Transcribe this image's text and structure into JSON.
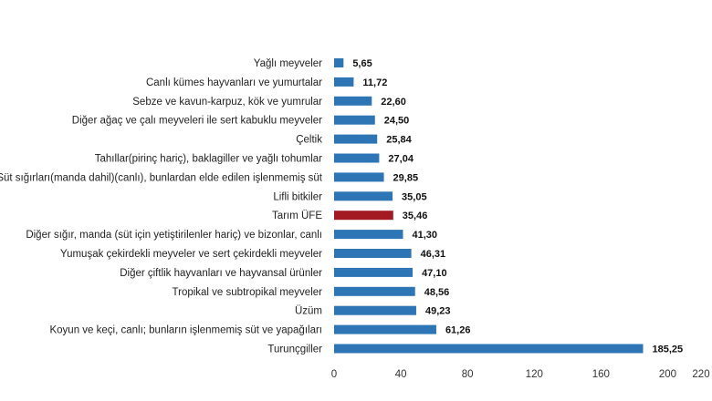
{
  "chart_data": {
    "type": "bar",
    "orientation": "horizontal",
    "title": "",
    "xlabel": "",
    "ylabel": "",
    "categories": [
      "Yağlı meyveler",
      "Canlı kümes hayvanları ve yumurtalar",
      "Sebze ve kavun-karpuz, kök ve yumrular",
      "Diğer ağaç ve çalı meyveleri ile sert kabuklu meyveler",
      "Çeltik",
      "Tahıllar(pirinç hariç), baklagiller ve yağlı tohumlar",
      "Süt sığırları(manda dahil)(canlı), bunlardan elde edilen işlenmemiş süt",
      "Lifli bitkiler",
      "Tarım ÜFE",
      "Diğer sığır, manda (süt için yetiştirilenler hariç) ve bizonlar, canlı",
      "Yumuşak çekirdekli meyveler ve sert çekirdekli meyveler",
      "Diğer çiftlik hayvanları ve hayvansal ürünler",
      "Tropikal ve subtropikal meyveler",
      "Üzüm",
      "Koyun ve keçi, canlı; bunların işlenmemiş süt ve yapağıları",
      "Turunçgiller"
    ],
    "values": [
      5.65,
      11.72,
      22.6,
      24.5,
      25.84,
      27.04,
      29.85,
      35.05,
      35.46,
      41.3,
      46.31,
      47.1,
      48.56,
      49.23,
      61.26,
      185.25
    ],
    "value_labels": [
      "5,65",
      "11,72",
      "22,60",
      "24,50",
      "25,84",
      "27,04",
      "29,85",
      "35,05",
      "35,46",
      "41,30",
      "46,31",
      "47,10",
      "48,56",
      "49,23",
      "61,26",
      "185,25"
    ],
    "highlight_category": "Tarım ÜFE",
    "xlim": [
      0,
      220
    ],
    "xticks": [
      0,
      40,
      80,
      120,
      160,
      200,
      220
    ],
    "xtick_labels": [
      "0",
      "40",
      "80",
      "120",
      "160",
      "200",
      "220"
    ],
    "grid": false,
    "legend": "none",
    "colors": {
      "bar": "#2e75b6",
      "highlight": "#a31a22"
    }
  }
}
